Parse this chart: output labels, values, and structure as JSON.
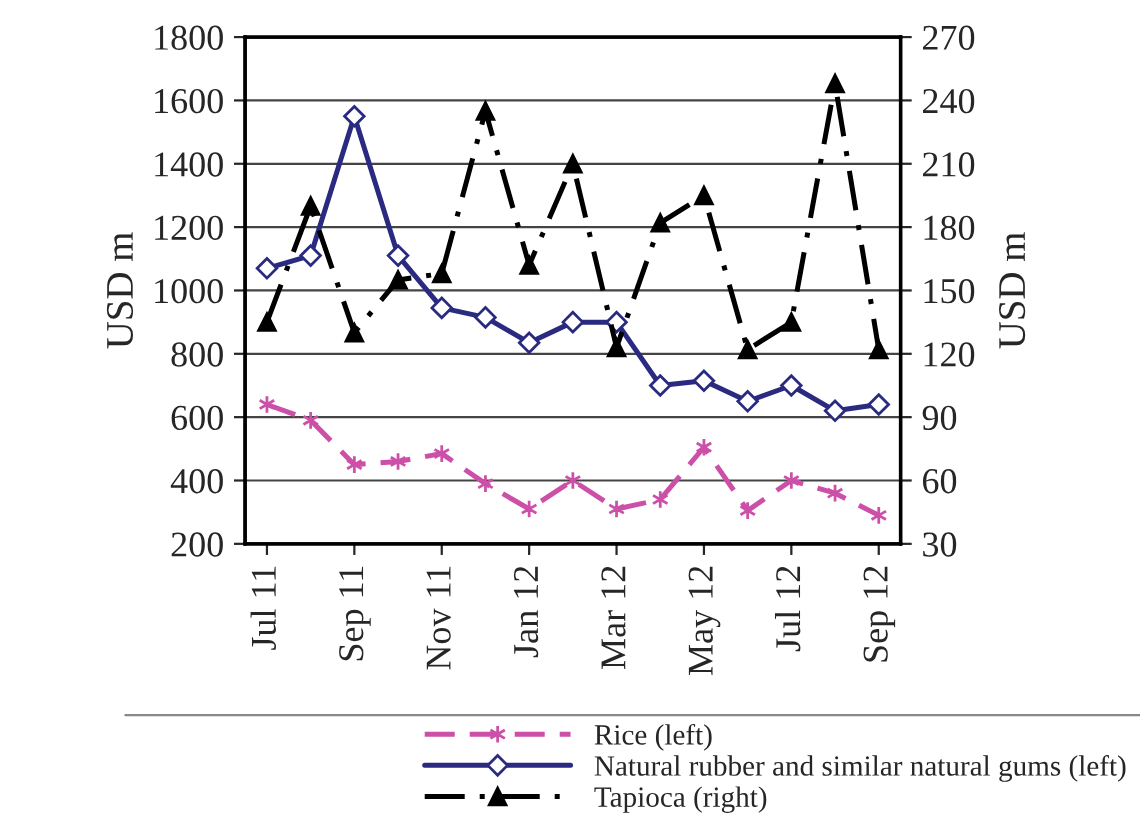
{
  "chart_data": {
    "type": "line",
    "categories": [
      "Jul 11",
      null,
      "Sep 11",
      null,
      "Nov 11",
      null,
      "Jan 12",
      null,
      "Mar 12",
      null,
      "May 12",
      null,
      "Jul 12",
      null,
      "Sep 12"
    ],
    "series": [
      {
        "name": "Rice (left)",
        "color": "#cc4fa8",
        "marker": "cross",
        "line_style": "dashed",
        "values": [
          640,
          590,
          450,
          460,
          485,
          390,
          310,
          400,
          310,
          340,
          505,
          305,
          400,
          360,
          290
        ]
      },
      {
        "name": "Natural rubber and similar natural gums (left)",
        "color": "#2a2a80",
        "marker": "diamond",
        "line_style": "solid",
        "values": [
          1070,
          1110,
          1550,
          1110,
          945,
          915,
          835,
          900,
          900,
          700,
          715,
          650,
          700,
          620,
          640
        ]
      },
      {
        "name": "Tapioca (right)",
        "color": "#000000",
        "marker": "triangle",
        "line_style": "dashdot",
        "axis": "y2",
        "values": [
          135,
          190,
          130,
          155,
          158,
          235,
          162,
          210,
          123,
          182,
          195,
          122,
          135,
          248,
          122
        ]
      }
    ],
    "ylabel": "USD m",
    "y2label": "USD m",
    "ylim": [
      200,
      1800
    ],
    "yticks": [
      200,
      400,
      600,
      800,
      1000,
      1200,
      1400,
      1600,
      1800
    ],
    "y2lim": [
      30,
      270
    ],
    "y2ticks": [
      30,
      60,
      90,
      120,
      150,
      180,
      210,
      240,
      270
    ],
    "grid": "y",
    "legend": "bottom"
  }
}
